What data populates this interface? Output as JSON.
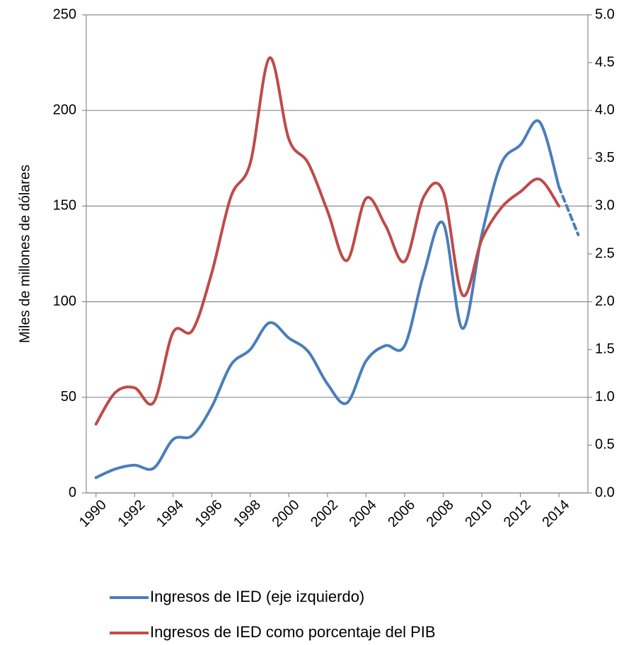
{
  "chart_data": {
    "type": "line",
    "y_label": "Miles de millones de dólares",
    "x": [
      1990,
      1991,
      1992,
      1993,
      1994,
      1995,
      1996,
      1997,
      1998,
      1999,
      2000,
      2001,
      2002,
      2003,
      2004,
      2005,
      2006,
      2007,
      2008,
      2009,
      2010,
      2011,
      2012,
      2013,
      2014,
      2015
    ],
    "xlim": [
      1989.5,
      2015.5
    ],
    "xticks": [
      1990,
      1992,
      1994,
      1996,
      1998,
      2000,
      2002,
      2004,
      2006,
      2008,
      2010,
      2012,
      2014
    ],
    "ylim": [
      0,
      250
    ],
    "yticks": [
      0,
      50,
      100,
      150,
      200,
      250
    ],
    "y2lim": [
      0,
      5
    ],
    "y2ticks": [
      {
        "value": 0,
        "label": "0.0"
      },
      0.5,
      {
        "value": 1,
        "label": "1.0"
      },
      1.5,
      {
        "value": 2,
        "label": "2.0"
      },
      2.5,
      {
        "value": 3,
        "label": "3.0"
      },
      3.5,
      {
        "value": 4,
        "label": "4.0"
      },
      4.5,
      {
        "value": 5,
        "label": "5.0"
      }
    ],
    "grid": true,
    "legend": "bottom",
    "series": [
      {
        "name": "Ingresos de IED (eje izquierdo)",
        "color": "#4a7ebb",
        "dashed_from": 2014,
        "values": [
          8,
          12.5,
          14.5,
          13,
          28,
          30,
          45,
          67,
          75,
          89,
          81,
          74,
          57,
          47,
          69,
          77,
          77,
          115,
          141,
          86,
          135,
          172,
          182,
          194,
          160,
          135
        ]
      },
      {
        "name": "Ingresos de IED como porcentaje del PIB",
        "color": "#be4b48",
        "axis": "y2",
        "values": [
          0.72,
          1.05,
          1.1,
          0.95,
          1.68,
          1.7,
          2.3,
          3.1,
          3.45,
          4.55,
          3.7,
          3.45,
          2.95,
          2.43,
          3.08,
          2.8,
          2.42,
          3.1,
          3.15,
          2.07,
          2.65,
          2.98,
          3.15,
          3.28,
          3.0,
          null
        ]
      }
    ]
  }
}
